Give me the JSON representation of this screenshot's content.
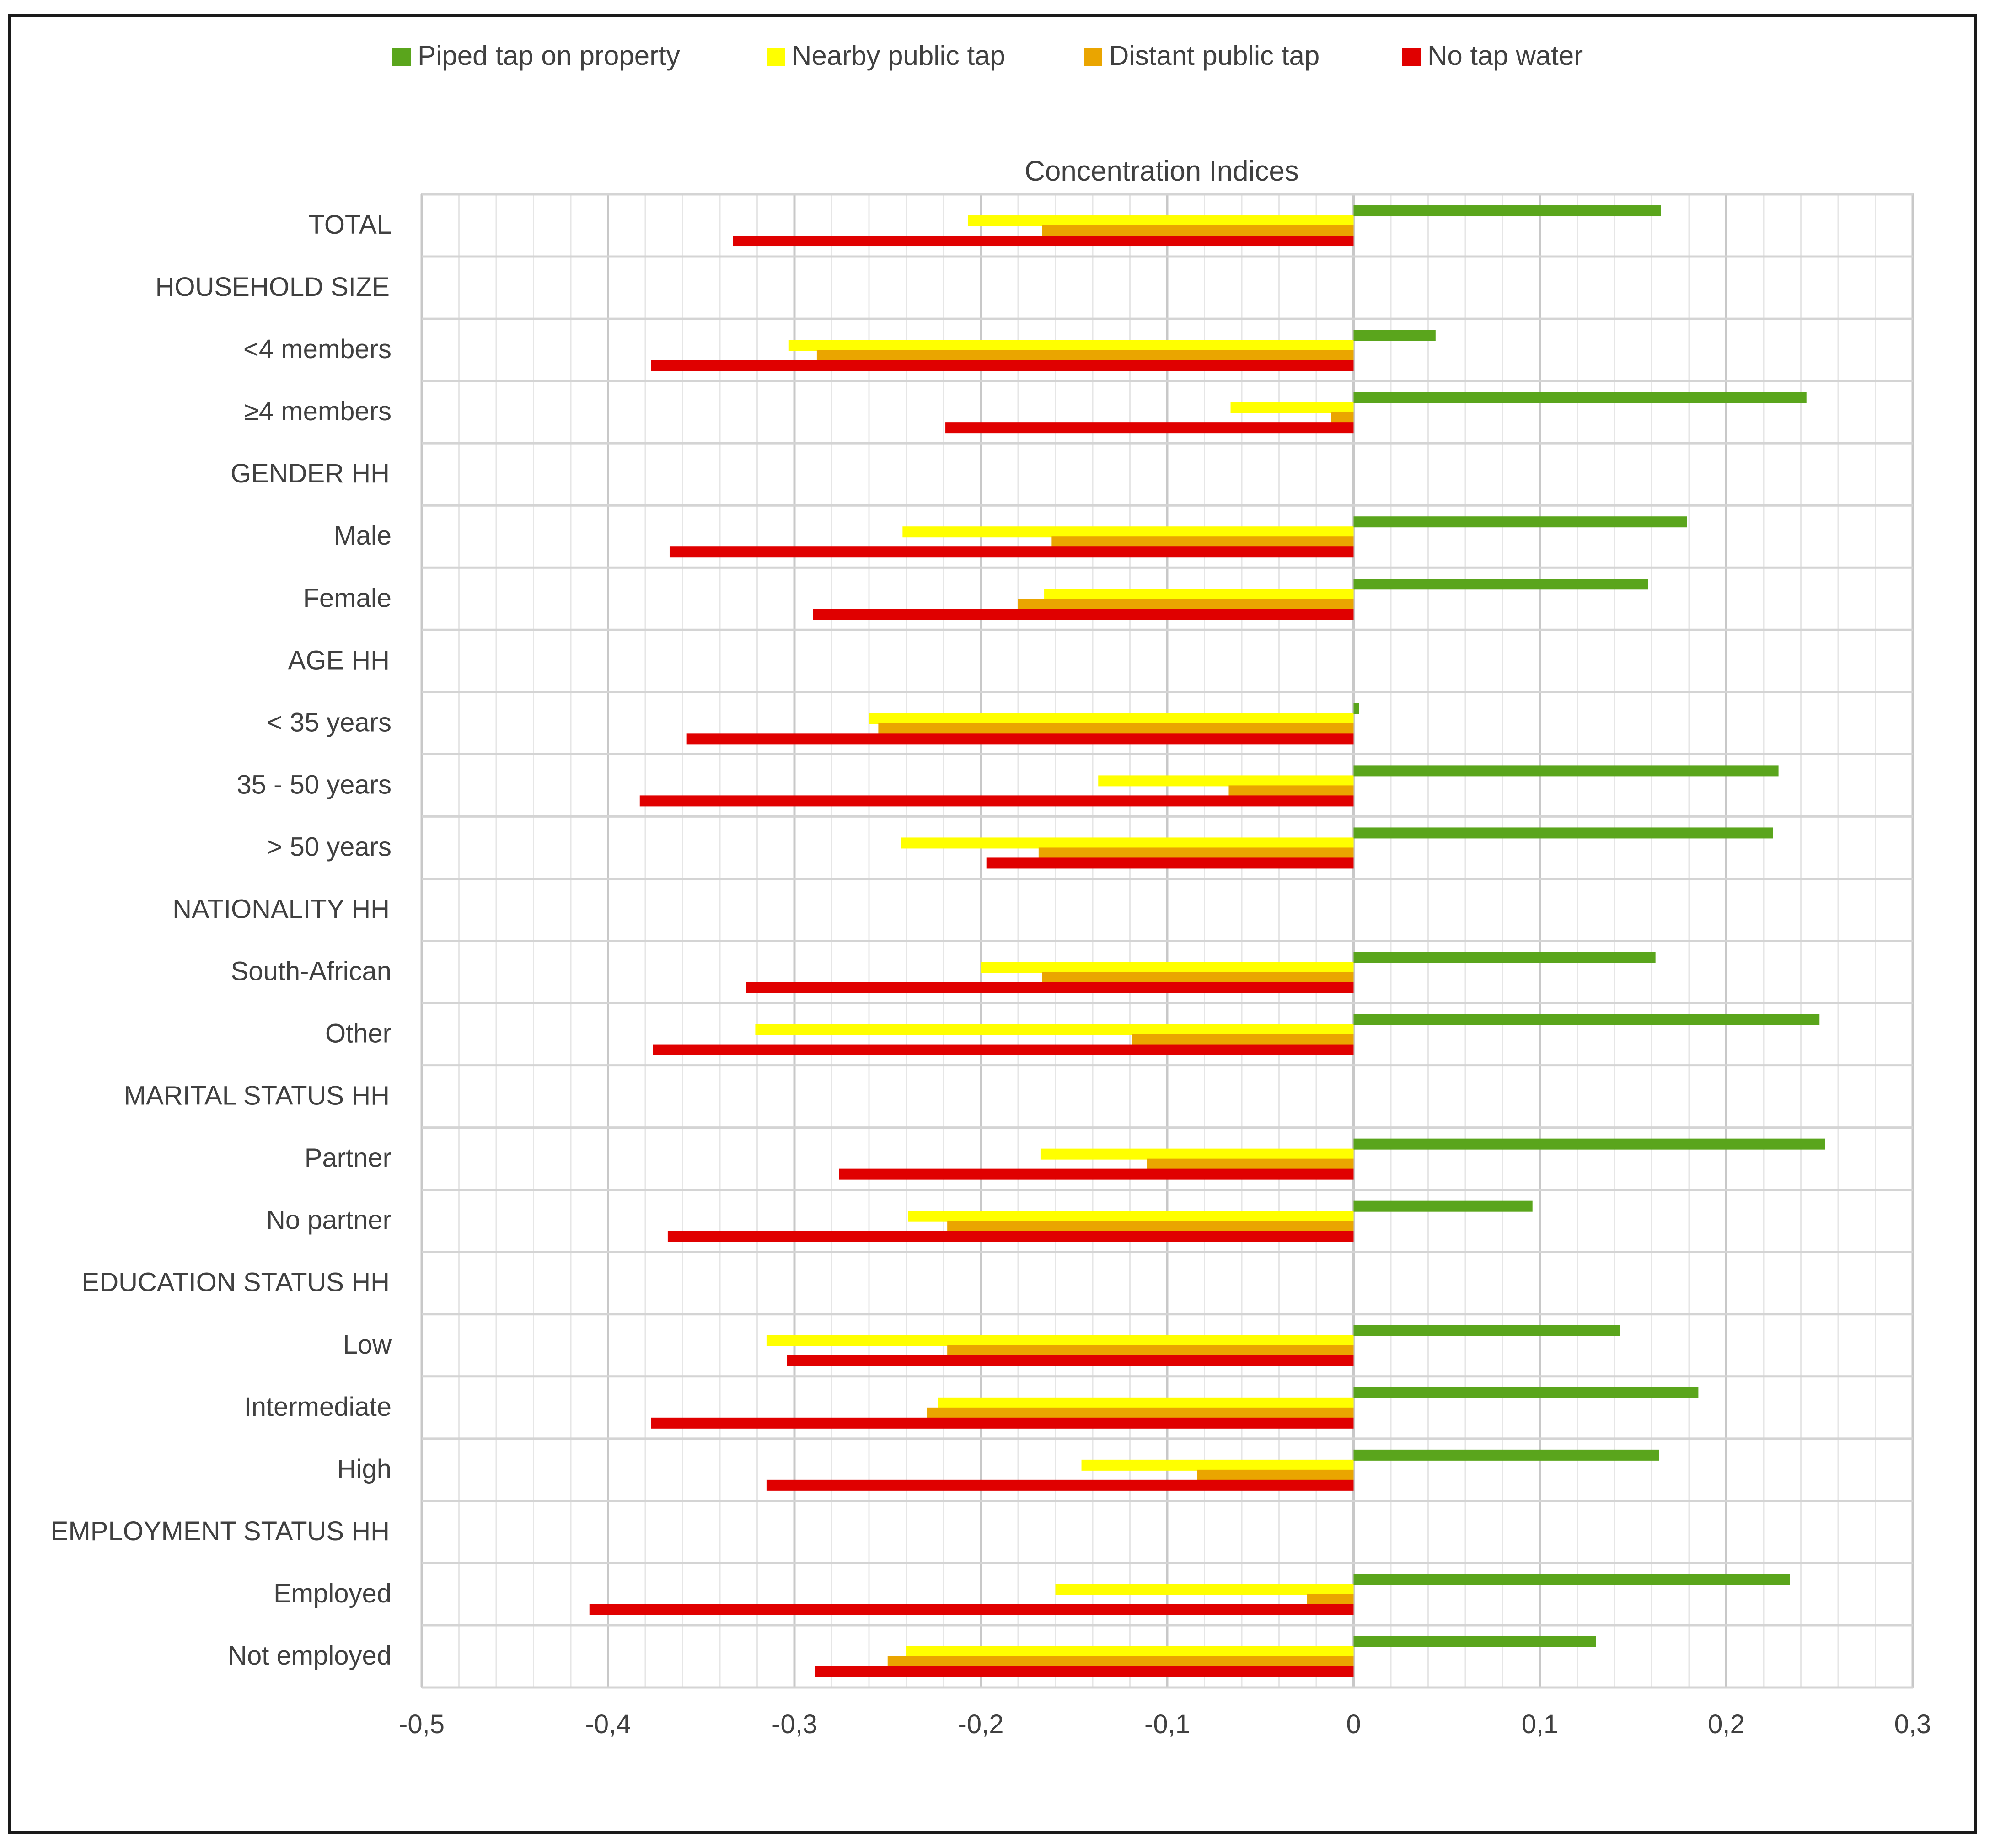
{
  "chart_data": {
    "type": "bar",
    "orientation": "horizontal",
    "title": "Concentration Indices",
    "xlabel": "",
    "ylabel": "",
    "xlim": [
      -0.5,
      0.3
    ],
    "x_ticks": [
      -0.5,
      -0.4,
      -0.3,
      -0.2,
      -0.1,
      0,
      0.1,
      0.2,
      0.3
    ],
    "x_tick_labels": [
      "-0,5",
      "-0,4",
      "-0,3",
      "-0,2",
      "-0,1",
      "0",
      "0,1",
      "0,2",
      "0,3"
    ],
    "grid": true,
    "legend_position": "top",
    "categories": [
      "TOTAL",
      "HOUSEHOLD SIZE",
      "<4 members",
      "≥4 members",
      "GENDER HH",
      "Male",
      "Female",
      "AGE HH",
      "< 35 years",
      "35 - 50 years",
      "> 50 years",
      "NATIONALITY HH",
      "South-African",
      "Other",
      "MARITAL STATUS HH",
      "Partner",
      "No partner",
      "EDUCATION STATUS HH",
      "Low",
      "Intermediate",
      "High",
      "EMPLOYMENT STATUS HH",
      "Employed",
      "Not employed"
    ],
    "series": [
      {
        "name": "Piped tap on property",
        "color": "#5aa51c",
        "values": [
          0.165,
          null,
          0.044,
          0.243,
          null,
          0.179,
          0.158,
          null,
          0.003,
          0.228,
          0.225,
          null,
          0.162,
          0.25,
          null,
          0.253,
          0.096,
          null,
          0.143,
          0.185,
          0.164,
          null,
          0.234,
          0.13
        ]
      },
      {
        "name": "Nearby public tap",
        "color": "#ffff00",
        "values": [
          -0.207,
          null,
          -0.303,
          -0.066,
          null,
          -0.242,
          -0.166,
          null,
          -0.26,
          -0.137,
          -0.243,
          null,
          -0.2,
          -0.321,
          null,
          -0.168,
          -0.239,
          null,
          -0.315,
          -0.223,
          -0.146,
          null,
          -0.16,
          -0.24
        ]
      },
      {
        "name": "Distant public tap",
        "color": "#eaa500",
        "values": [
          -0.167,
          null,
          -0.288,
          -0.012,
          null,
          -0.162,
          -0.18,
          null,
          -0.255,
          -0.067,
          -0.169,
          null,
          -0.167,
          -0.119,
          null,
          -0.111,
          -0.218,
          null,
          -0.218,
          -0.229,
          -0.084,
          null,
          -0.025,
          -0.25
        ]
      },
      {
        "name": "No tap water",
        "color": "#e00000",
        "values": [
          -0.333,
          null,
          -0.377,
          -0.219,
          null,
          -0.367,
          -0.29,
          null,
          -0.358,
          -0.383,
          -0.197,
          null,
          -0.326,
          -0.376,
          null,
          -0.276,
          -0.368,
          null,
          -0.304,
          -0.377,
          -0.315,
          null,
          -0.41,
          -0.289
        ]
      }
    ]
  }
}
